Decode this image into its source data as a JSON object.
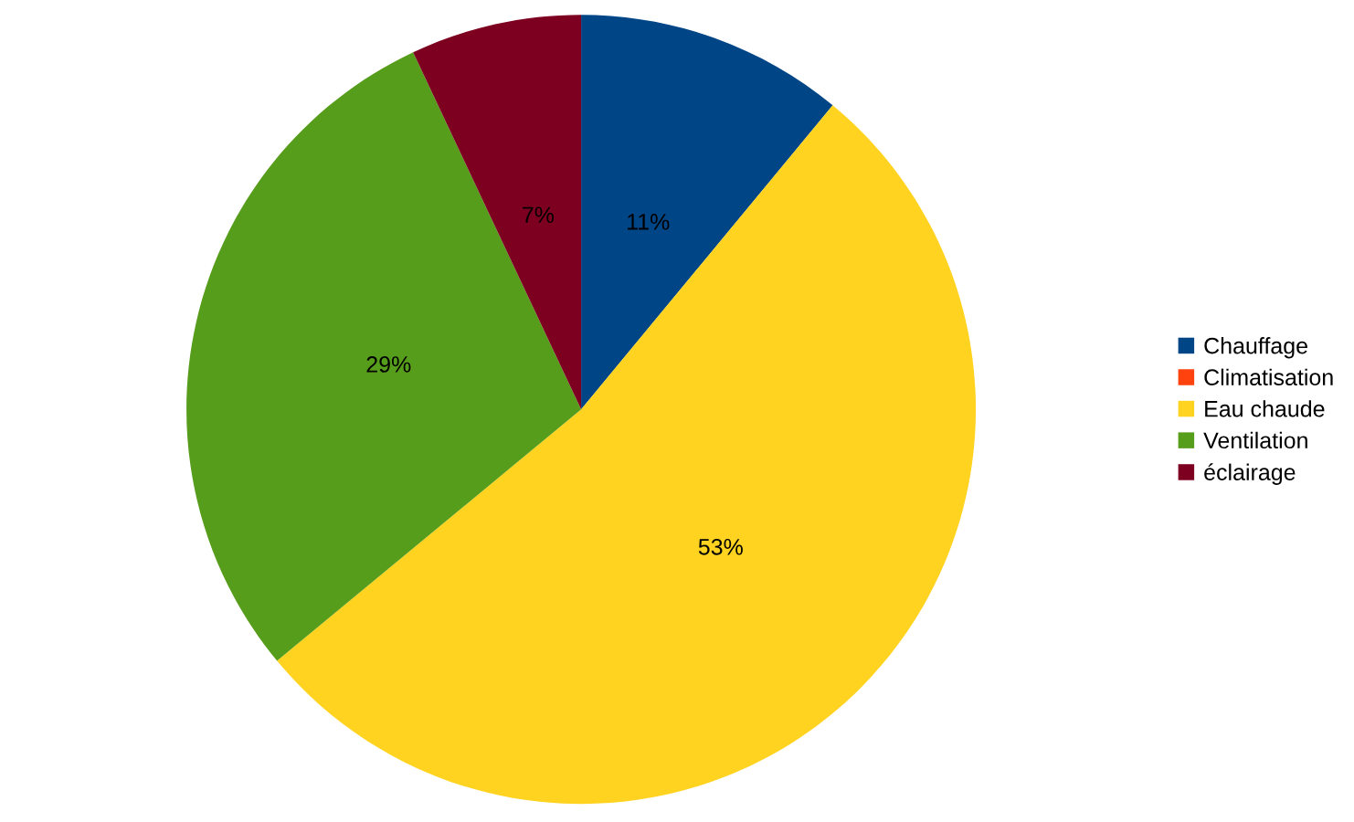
{
  "chart_data": {
    "type": "pie",
    "categories": [
      "Chauffage",
      "Climatisation",
      "Eau chaude",
      "Ventilation",
      "éclairage"
    ],
    "values": [
      11,
      0,
      53,
      29,
      7
    ],
    "colors": [
      "#004586",
      "#ff420e",
      "#ffd320",
      "#579d1c",
      "#7e0021"
    ],
    "value_labels": [
      "11%",
      null,
      "53%",
      "29%",
      "7%"
    ],
    "legend": "right"
  }
}
